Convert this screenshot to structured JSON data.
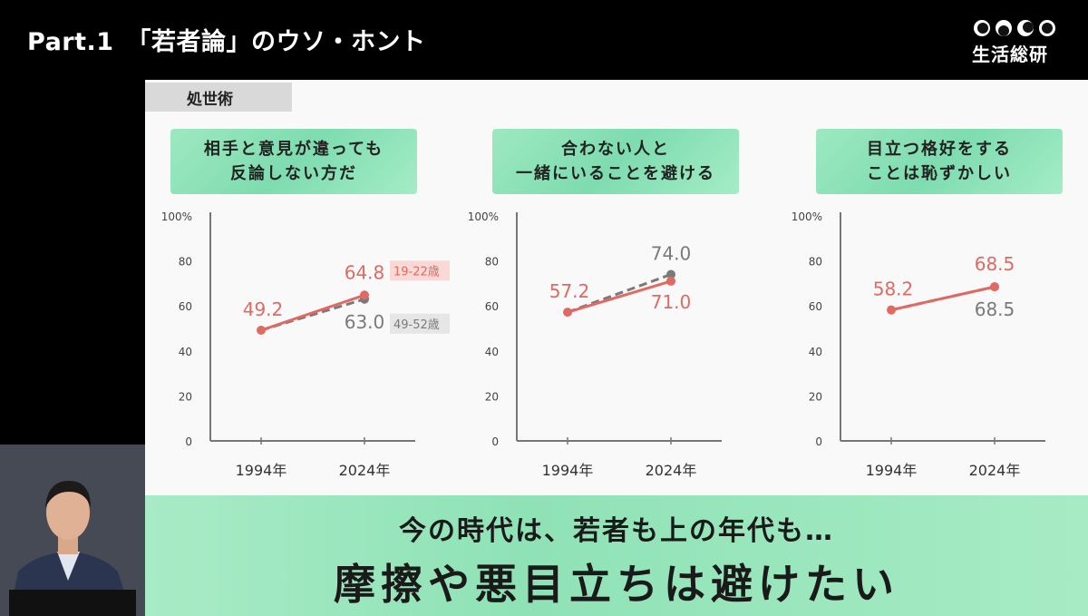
{
  "header": {
    "part": "Part.1　「若者論」のウソ・ホント",
    "logo_text": "生活総研"
  },
  "section_tag": "処世術",
  "legend": {
    "young": "19-22歳",
    "older": "49-52歳"
  },
  "colors": {
    "young": "#e06a62",
    "older": "#7a7a7a",
    "banner": "#9be6be"
  },
  "banner": {
    "line1": "今の時代は、若者も上の年代も…",
    "line2": "摩擦や悪目立ちは避けたい"
  },
  "chart_data": [
    {
      "type": "line",
      "title": "相手と意見が違っても\n反論しない方だ",
      "categories": [
        "1994年",
        "2024年"
      ],
      "ylim": [
        0,
        100
      ],
      "yticks": [
        "0",
        "20",
        "40",
        "60",
        "80",
        "100%"
      ],
      "series": [
        {
          "name": "19-22歳",
          "values": [
            49.2,
            64.8
          ]
        },
        {
          "name": "49-52歳",
          "values": [
            49.2,
            63.0
          ]
        }
      ],
      "labels": [
        "49.2",
        "64.8",
        "63.0"
      ]
    },
    {
      "type": "line",
      "title": "合わない人と\n一緒にいることを避ける",
      "categories": [
        "1994年",
        "2024年"
      ],
      "ylim": [
        0,
        100
      ],
      "yticks": [
        "0",
        "20",
        "40",
        "60",
        "80",
        "100%"
      ],
      "series": [
        {
          "name": "19-22歳",
          "values": [
            57.2,
            71.0
          ]
        },
        {
          "name": "49-52歳",
          "values": [
            57.2,
            74.0
          ]
        }
      ],
      "labels": [
        "57.2",
        "71.0",
        "74.0"
      ]
    },
    {
      "type": "line",
      "title": "目立つ格好をする\nことは恥ずかしい",
      "categories": [
        "1994年",
        "2024年"
      ],
      "ylim": [
        0,
        100
      ],
      "yticks": [
        "0",
        "20",
        "40",
        "60",
        "80",
        "100%"
      ],
      "series": [
        {
          "name": "19-22歳",
          "values": [
            58.2,
            68.5
          ]
        },
        {
          "name": "49-52歳",
          "values": [
            58.2,
            68.5
          ]
        }
      ],
      "labels": [
        "58.2",
        "68.5",
        "68.5"
      ]
    }
  ]
}
